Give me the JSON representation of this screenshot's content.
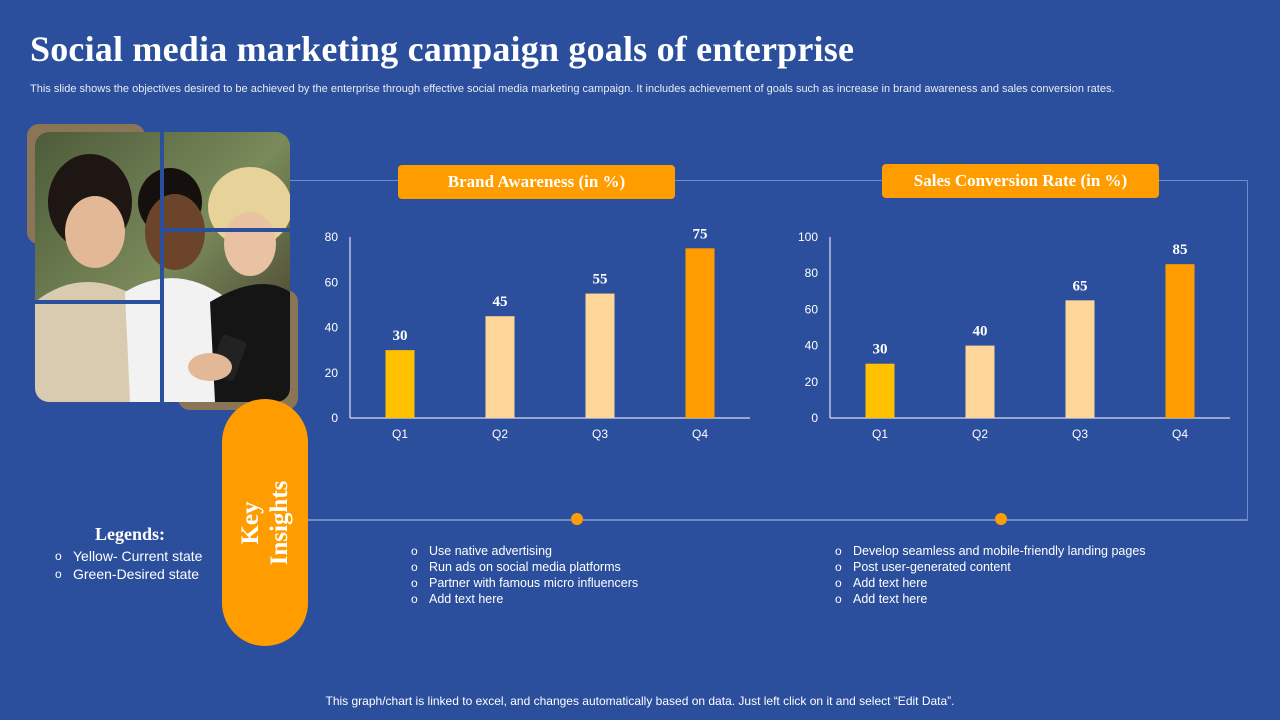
{
  "title": "Social media marketing campaign goals of enterprise",
  "subtitle": "This slide shows the objectives desired to be achieved by the enterprise through effective social media marketing campaign. It includes achievement of goals such as increase in brand awareness and sales conversion rates.",
  "colors": {
    "background": "#2b4f9c",
    "accent": "#ff9d00",
    "current": "#ffc000",
    "desired": "#ffd699",
    "target": "#ff9d00"
  },
  "chart_data": [
    {
      "type": "bar",
      "title": "Brand Awareness (in %)",
      "categories": [
        "Q1",
        "Q2",
        "Q3",
        "Q4"
      ],
      "values": [
        30,
        45,
        55,
        75
      ],
      "value_labels": [
        "30",
        "45",
        "55",
        "75"
      ],
      "ylim": [
        0,
        80
      ],
      "yticks": [
        "0",
        "20",
        "40",
        "60",
        "80"
      ]
    },
    {
      "type": "bar",
      "title": "Sales Conversion Rate (in %)",
      "categories": [
        "Q1",
        "Q2",
        "Q3",
        "Q4"
      ],
      "values": [
        30,
        40,
        65,
        85
      ],
      "value_labels": [
        "30",
        "40",
        "65",
        "85"
      ],
      "ylim": [
        0,
        100
      ],
      "yticks": [
        "0",
        "20",
        "40",
        "60",
        "80",
        "100"
      ]
    }
  ],
  "key_insights": {
    "line1": "Key",
    "line2": "Insights"
  },
  "legend": {
    "title": "Legends:",
    "items": [
      "Yellow- Current state",
      "Green-Desired state"
    ]
  },
  "insights_left": [
    "Use native advertising",
    "Run ads on social media platforms",
    "Partner with famous micro influencers",
    "Add text here"
  ],
  "insights_right": [
    "Develop seamless and mobile-friendly landing pages",
    "Post user-generated content",
    "Add text here",
    "Add text here"
  ],
  "footer": "This graph/chart is linked to excel, and changes automatically based on data. Just left click on it and select “Edit Data”."
}
